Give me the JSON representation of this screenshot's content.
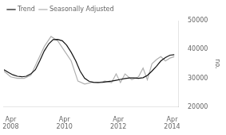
{
  "chart_data": {
    "type": "line",
    "ylabel": "no.",
    "xlim": [
      2008.0,
      2014.5
    ],
    "xticks": [
      {
        "value": 2008.25,
        "label": "Apr\n2008"
      },
      {
        "value": 2010.25,
        "label": "Apr\n2010"
      },
      {
        "value": 2012.25,
        "label": "Apr\n2012"
      },
      {
        "value": 2014.25,
        "label": "Apr\n2014"
      }
    ],
    "ylim": [
      20000,
      50000
    ],
    "yticks": [
      20000,
      30000,
      40000,
      50000
    ],
    "grid": false,
    "legend": "upper left",
    "series": [
      {
        "name": "Trend",
        "color": "#111111",
        "x": [
          2008.0,
          2008.17,
          2008.33,
          2008.5,
          2008.67,
          2008.83,
          2009.0,
          2009.17,
          2009.33,
          2009.5,
          2009.67,
          2009.83,
          2010.0,
          2010.17,
          2010.33,
          2010.5,
          2010.67,
          2010.83,
          2011.0,
          2011.17,
          2011.33,
          2011.5,
          2011.67,
          2011.83,
          2012.0,
          2012.17,
          2012.33,
          2012.5,
          2012.67,
          2012.83,
          2013.0,
          2013.17,
          2013.33,
          2013.5,
          2013.67,
          2013.83,
          2014.0,
          2014.17,
          2014.33
        ],
        "values": [
          33000,
          32000,
          31200,
          30700,
          30500,
          30700,
          31500,
          33000,
          36000,
          39500,
          42000,
          43400,
          43500,
          43000,
          41500,
          39000,
          36000,
          32500,
          30000,
          28900,
          28600,
          28500,
          28600,
          28800,
          29000,
          29300,
          29600,
          29900,
          30100,
          30100,
          30000,
          30200,
          31000,
          32500,
          34200,
          36000,
          37200,
          38000,
          38200
        ]
      },
      {
        "name": "Seasonally Adjusted",
        "color": "#b0b0b0",
        "x": [
          2008.0,
          2008.25,
          2008.5,
          2008.75,
          2009.0,
          2009.25,
          2009.5,
          2009.75,
          2010.0,
          2010.25,
          2010.5,
          2010.75,
          2011.0,
          2011.25,
          2011.5,
          2011.75,
          2012.0,
          2012.17,
          2012.33,
          2012.5,
          2012.75,
          2013.0,
          2013.17,
          2013.33,
          2013.5,
          2013.67,
          2013.83,
          2014.0,
          2014.17,
          2014.33
        ],
        "values": [
          32500,
          30500,
          30000,
          30000,
          31000,
          36000,
          41000,
          44500,
          43000,
          39500,
          36000,
          29000,
          28000,
          28500,
          28500,
          29000,
          28500,
          31500,
          28500,
          31500,
          29500,
          30500,
          33500,
          29500,
          35000,
          36500,
          37500,
          36000,
          37000,
          37500
        ]
      }
    ]
  }
}
